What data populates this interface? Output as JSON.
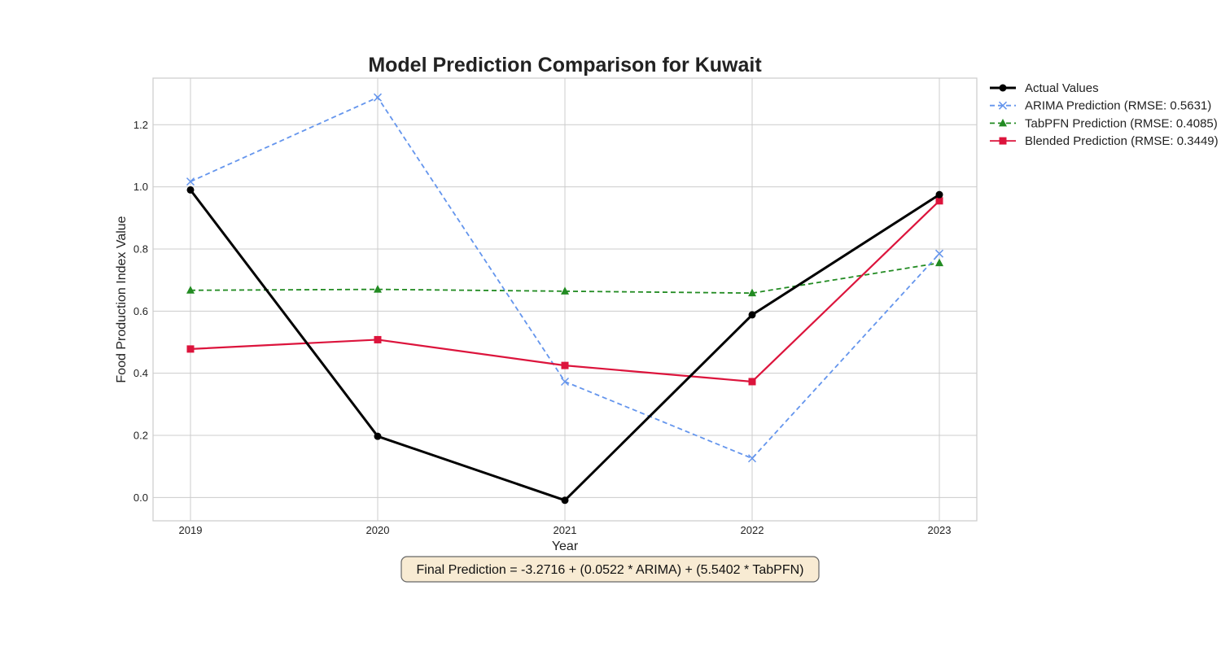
{
  "chart_data": {
    "type": "line",
    "title": "Model Prediction Comparison for Kuwait",
    "xlabel": "Year",
    "ylabel": "Food Production Index Value",
    "categories": [
      "2019",
      "2020",
      "2021",
      "2022",
      "2023"
    ],
    "ylim": [
      -0.075,
      1.35
    ],
    "yticks": [
      0.0,
      0.2,
      0.4,
      0.6,
      0.8,
      1.0,
      1.2
    ],
    "ytick_labels": [
      "0.0",
      "0.2",
      "0.4",
      "0.6",
      "0.8",
      "1.0",
      "1.2"
    ],
    "grid": true,
    "legend_position": "outside-right",
    "series": [
      {
        "name": "Actual Values",
        "values": [
          0.99,
          0.197,
          -0.009,
          0.588,
          0.975
        ],
        "color": "#000000",
        "dash": "solid",
        "marker": "circle"
      },
      {
        "name": "ARIMA Prediction (RMSE: 0.5631)",
        "values": [
          1.017,
          1.288,
          0.373,
          0.126,
          0.785
        ],
        "color": "#6495ED",
        "dash": "dashed",
        "marker": "x"
      },
      {
        "name": "TabPFN Prediction (RMSE: 0.4085)",
        "values": [
          0.667,
          0.67,
          0.664,
          0.658,
          0.755
        ],
        "color": "#228B22",
        "dash": "dashed",
        "marker": "triangle"
      },
      {
        "name": "Blended Prediction (RMSE: 0.3449)",
        "values": [
          0.478,
          0.508,
          0.425,
          0.373,
          0.955
        ],
        "color": "#DC143C",
        "dash": "solid",
        "marker": "square"
      }
    ],
    "annotation": "Final Prediction = -3.2716 + (0.0522 * ARIMA) + (5.5402 * TabPFN)"
  }
}
